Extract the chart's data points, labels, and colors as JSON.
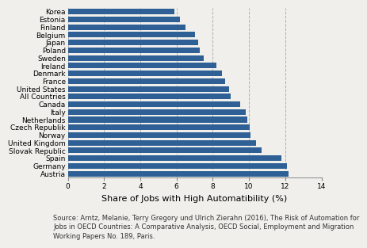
{
  "countries": [
    "Austria",
    "Germany",
    "Spain",
    "Slovak Republic",
    "United Kingdom",
    "Norway",
    "Czech Republik",
    "Netherlands",
    "Italy",
    "Canada",
    "All Countries",
    "United States",
    "France",
    "Denmark",
    "Ireland",
    "Sweden",
    "Poland",
    "Japan",
    "Belgium",
    "Finland",
    "Estonia",
    "Korea"
  ],
  "values": [
    12.2,
    12.1,
    11.8,
    10.7,
    10.4,
    10.1,
    10.05,
    9.9,
    9.8,
    9.5,
    9.0,
    8.9,
    8.7,
    8.5,
    8.2,
    7.5,
    7.3,
    7.2,
    7.0,
    6.5,
    6.2,
    5.9
  ],
  "bar_color": "#2e6096",
  "xlabel": "Share of Jobs with High Automatibility (%)",
  "xlim": [
    0,
    14
  ],
  "xticks": [
    0,
    2,
    4,
    6,
    8,
    10,
    12,
    14
  ],
  "grid_color": "#b0b0b0",
  "source_text": "Source: Arntz, Melanie, Terry Gregory und Ulrich Zierahn (2016), The Risk of Automation for\nJobs in OECD Countries: A Comparative Analysis, OECD Social, Employment and Migration\nWorking Papers No. 189, Paris.",
  "background_color": "#f0efeb",
  "tick_fontsize": 6.5,
  "label_fontsize": 8.0,
  "source_fontsize": 6.0
}
